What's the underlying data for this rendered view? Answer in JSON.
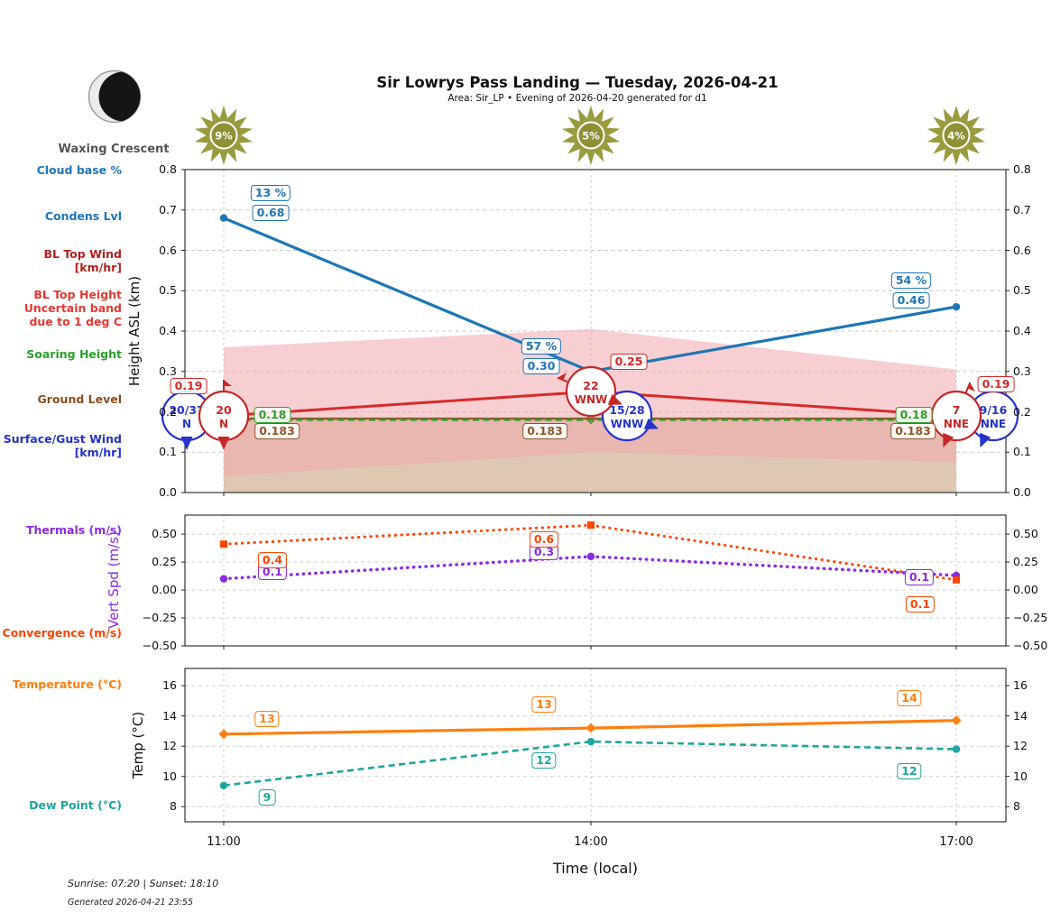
{
  "header": {
    "title": "Sir Lowrys Pass Landing — Tuesday, 2026-04-21",
    "subtitle": "Area: Sir_LP • Evening of 2026-04-20 generated for d1",
    "moon_label": "Waxing Crescent"
  },
  "sun_badges": [
    {
      "time": "11:00",
      "value": "9%"
    },
    {
      "time": "14:00",
      "value": "5%"
    },
    {
      "time": "17:00",
      "value": "4%"
    }
  ],
  "row_labels": {
    "top": [
      {
        "text": "Cloud base %",
        "color": "#1f77b4"
      },
      {
        "text": "Condens Lvl",
        "color": "#1f77b4"
      },
      {
        "text": "BL Top Wind\n[km/hr]",
        "color": "#b22222"
      },
      {
        "text": "BL Top Height\nUncertain band\ndue to 1 deg C",
        "color": "#e53935"
      },
      {
        "text": "Soaring Height",
        "color": "#2ca02c"
      },
      {
        "text": "Ground Level",
        "color": "#8b4f1d"
      },
      {
        "text": "Surface/Gust Wind\n[km/hr]",
        "color": "#2633cc"
      }
    ],
    "middle": [
      {
        "text": "Thermals (m/s)",
        "color": "#8a2be2"
      },
      {
        "text": "Convergence (m/s)",
        "color": "#ff4500"
      }
    ],
    "bottom": [
      {
        "text": "Temperature (°C)",
        "color": "#ff7f0e"
      },
      {
        "text": "Dew Point (°C)",
        "color": "#20a5a0"
      }
    ]
  },
  "axes": {
    "x_ticks": [
      "11:00",
      "14:00",
      "17:00"
    ],
    "x_label": "Time (local)"
  },
  "chart_data": [
    {
      "type": "line",
      "ylabel": "Height ASL (km)",
      "ylim": [
        0.0,
        0.8
      ],
      "x": [
        "11:00",
        "14:00",
        "17:00"
      ],
      "ytick_values": [
        0.8,
        0.7,
        0.6,
        0.5,
        0.4,
        0.3,
        0.2,
        0.1,
        0.0
      ],
      "ytick_labels": [
        "0.8",
        "0.7",
        "0.6",
        "0.5",
        "0.4",
        "0.3",
        "0.2",
        "0.1",
        "0.0"
      ],
      "series": [
        {
          "name": "Condens Lvl",
          "color": "#1f77b4",
          "dash": "solid",
          "width": 3.2,
          "marker": "circle",
          "values": [
            0.68,
            0.3,
            0.46
          ],
          "point_labels": [
            "0.68",
            "0.30",
            "0.46"
          ],
          "point_labels2": [
            "13 %",
            "57 %",
            "54 %"
          ]
        },
        {
          "name": "BL Top Height",
          "color": "#d62b2b",
          "dash": "solid",
          "width": 3,
          "marker": "none",
          "values": [
            0.19,
            0.25,
            0.19
          ],
          "point_labels": [
            "0.19",
            "0.25",
            "0.19"
          ]
        },
        {
          "name": "Ground Level",
          "color": "#8b5a2b",
          "dash": "solid",
          "width": 2.4,
          "marker": "none",
          "values": [
            0.183,
            0.183,
            0.183
          ],
          "point_labels": [
            "0.183",
            "0.183",
            "0.183"
          ]
        },
        {
          "name": "Soaring Height",
          "color": "#2ca02c",
          "dash": "dashed",
          "width": 2.4,
          "marker": "none",
          "values": [
            0.18,
            0.18,
            0.18
          ],
          "point_labels": [
            "0.18",
            null,
            "0.18"
          ]
        }
      ],
      "bands": [
        {
          "name": "Ground fill",
          "color": "#ddc5ae",
          "opacity": 0.95,
          "upper": [
            0.183,
            0.183,
            0.183
          ],
          "lower": [
            0.0,
            0.0,
            0.0
          ]
        },
        {
          "name": "BL Top Height uncertainty band",
          "color": "#f0a8ae",
          "opacity": 0.55,
          "upper": [
            0.36,
            0.405,
            0.305
          ],
          "lower": [
            0.04,
            0.1,
            0.075
          ]
        }
      ],
      "wind": {
        "bl_top": {
          "color": "#c62828",
          "entries": [
            {
              "label": "20",
              "dir": "N"
            },
            {
              "label": "22",
              "dir": "WNW"
            },
            {
              "label": "7",
              "dir": "NNE"
            }
          ]
        },
        "surface": {
          "color": "#2633cc",
          "entries": [
            {
              "label": "20/37",
              "dir": "N"
            },
            {
              "label": "15/28",
              "dir": "WNW"
            },
            {
              "label": "9/16",
              "dir": "NNE"
            }
          ]
        }
      }
    },
    {
      "type": "line",
      "ylabel": "Vert Spd (m/s)",
      "ylim": [
        -0.5,
        0.67
      ],
      "x": [
        "11:00",
        "14:00",
        "17:00"
      ],
      "ytick_values": [
        0.5,
        0.25,
        0.0,
        -0.25,
        -0.5
      ],
      "ytick_labels": [
        "0.50",
        "0.25",
        "0.00",
        "−0.25",
        "−0.50"
      ],
      "series": [
        {
          "name": "Thermals",
          "color": "#8a2be2",
          "dash": "dotted",
          "width": 3.4,
          "marker": "circle",
          "values": [
            0.1,
            0.3,
            0.13
          ],
          "point_labels": [
            "0.1",
            "0.3",
            "0.1"
          ]
        },
        {
          "name": "Convergence",
          "color": "#ff4500",
          "dash": "dotted",
          "width": 3,
          "marker": "square",
          "values": [
            0.41,
            0.58,
            0.09
          ],
          "point_labels": [
            "0.4",
            "0.6",
            "0.1"
          ]
        }
      ],
      "bands": []
    },
    {
      "type": "line",
      "ylabel": "Temp (°C)",
      "ylim": [
        7.0,
        17.14
      ],
      "x": [
        "11:00",
        "14:00",
        "17:00"
      ],
      "ytick_values": [
        16,
        14,
        12,
        10,
        8
      ],
      "ytick_labels": [
        "16",
        "14",
        "12",
        "10",
        "8"
      ],
      "series": [
        {
          "name": "Temperature",
          "color": "#ff7f0e",
          "dash": "solid",
          "width": 3.2,
          "marker": "diamond",
          "values": [
            12.8,
            13.2,
            13.7
          ],
          "point_labels": [
            "13",
            "13",
            "14"
          ]
        },
        {
          "name": "Dew Point",
          "color": "#20a5a0",
          "dash": "dashed",
          "width": 2.6,
          "marker": "circle",
          "values": [
            9.4,
            12.3,
            11.8
          ],
          "point_labels": [
            "9",
            "12",
            "12"
          ]
        }
      ],
      "bands": []
    }
  ],
  "footer": {
    "sun_times": "Sunrise: 07:20 | Sunset: 18:10",
    "generated": "Generated 2026-04-21 23:55"
  }
}
